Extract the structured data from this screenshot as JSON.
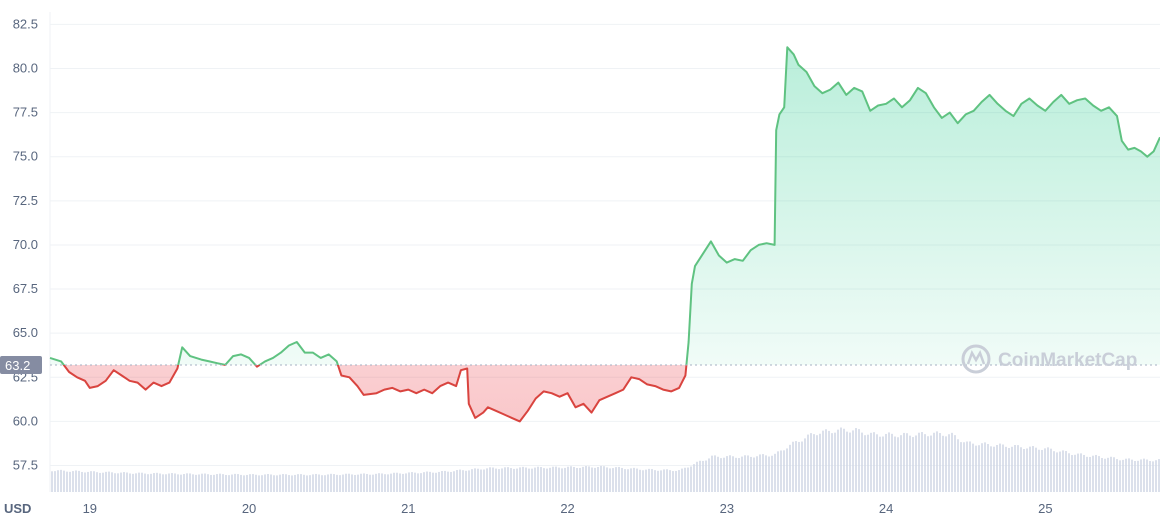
{
  "watermark": {
    "text": "CoinMarketCap",
    "icon": "coinmarketcap-logo-icon"
  },
  "colors": {
    "up": "#16c784",
    "up_line": "#5fc281",
    "down": "#ea3943",
    "down_line": "#d9443f",
    "volume": "#cfd6e4",
    "ref_badge": "#858ca2"
  },
  "chart_data": {
    "type": "area",
    "currency_label": "USD",
    "reference_value": 63.2,
    "reference_label": "63.2",
    "ylim": [
      56.0,
      83.2
    ],
    "xlim": [
      18.75,
      25.72
    ],
    "y_ticks": [
      {
        "value": 57.5,
        "label": "57.5"
      },
      {
        "value": 60.0,
        "label": "60.0"
      },
      {
        "value": 62.5,
        "label": "62.5"
      },
      {
        "value": 65.0,
        "label": "65.0"
      },
      {
        "value": 67.5,
        "label": "67.5"
      },
      {
        "value": 70.0,
        "label": "70.0"
      },
      {
        "value": 72.5,
        "label": "72.5"
      },
      {
        "value": 75.0,
        "label": "75.0"
      },
      {
        "value": 77.5,
        "label": "77.5"
      },
      {
        "value": 80.0,
        "label": "80.0"
      },
      {
        "value": 82.5,
        "label": "82.5"
      }
    ],
    "x_ticks": [
      {
        "value": 19,
        "label": "19"
      },
      {
        "value": 20,
        "label": "20"
      },
      {
        "value": 21,
        "label": "21"
      },
      {
        "value": 22,
        "label": "22"
      },
      {
        "value": 23,
        "label": "23"
      },
      {
        "value": 24,
        "label": "24"
      },
      {
        "value": 25,
        "label": "25"
      }
    ],
    "price": [
      [
        18.75,
        63.6
      ],
      [
        18.82,
        63.4
      ],
      [
        18.87,
        62.8
      ],
      [
        18.92,
        62.5
      ],
      [
        18.97,
        62.3
      ],
      [
        19.0,
        61.9
      ],
      [
        19.05,
        62.0
      ],
      [
        19.1,
        62.3
      ],
      [
        19.15,
        62.9
      ],
      [
        19.2,
        62.6
      ],
      [
        19.25,
        62.3
      ],
      [
        19.3,
        62.2
      ],
      [
        19.35,
        61.8
      ],
      [
        19.4,
        62.2
      ],
      [
        19.45,
        62.0
      ],
      [
        19.5,
        62.2
      ],
      [
        19.55,
        63.0
      ],
      [
        19.58,
        64.2
      ],
      [
        19.63,
        63.7
      ],
      [
        19.7,
        63.5
      ],
      [
        19.75,
        63.4
      ],
      [
        19.8,
        63.3
      ],
      [
        19.85,
        63.2
      ],
      [
        19.9,
        63.7
      ],
      [
        19.95,
        63.8
      ],
      [
        20.0,
        63.6
      ],
      [
        20.05,
        63.1
      ],
      [
        20.1,
        63.4
      ],
      [
        20.15,
        63.6
      ],
      [
        20.2,
        63.9
      ],
      [
        20.25,
        64.3
      ],
      [
        20.3,
        64.5
      ],
      [
        20.35,
        63.9
      ],
      [
        20.4,
        63.9
      ],
      [
        20.45,
        63.6
      ],
      [
        20.5,
        63.8
      ],
      [
        20.55,
        63.4
      ],
      [
        20.58,
        62.6
      ],
      [
        20.63,
        62.5
      ],
      [
        20.68,
        62.0
      ],
      [
        20.72,
        61.5
      ],
      [
        20.8,
        61.6
      ],
      [
        20.85,
        61.8
      ],
      [
        20.9,
        61.9
      ],
      [
        20.95,
        61.7
      ],
      [
        21.0,
        61.8
      ],
      [
        21.05,
        61.6
      ],
      [
        21.1,
        61.8
      ],
      [
        21.15,
        61.6
      ],
      [
        21.2,
        62.0
      ],
      [
        21.25,
        62.2
      ],
      [
        21.3,
        62.0
      ],
      [
        21.33,
        62.9
      ],
      [
        21.37,
        63.0
      ],
      [
        21.38,
        61.0
      ],
      [
        21.42,
        60.2
      ],
      [
        21.47,
        60.5
      ],
      [
        21.5,
        60.8
      ],
      [
        21.55,
        60.6
      ],
      [
        21.6,
        60.4
      ],
      [
        21.65,
        60.2
      ],
      [
        21.7,
        60.0
      ],
      [
        21.75,
        60.6
      ],
      [
        21.8,
        61.3
      ],
      [
        21.85,
        61.7
      ],
      [
        21.9,
        61.6
      ],
      [
        21.95,
        61.4
      ],
      [
        22.0,
        61.6
      ],
      [
        22.05,
        60.8
      ],
      [
        22.1,
        61.0
      ],
      [
        22.15,
        60.5
      ],
      [
        22.2,
        61.2
      ],
      [
        22.25,
        61.4
      ],
      [
        22.3,
        61.6
      ],
      [
        22.35,
        61.8
      ],
      [
        22.4,
        62.5
      ],
      [
        22.45,
        62.4
      ],
      [
        22.5,
        62.1
      ],
      [
        22.55,
        62.0
      ],
      [
        22.6,
        61.8
      ],
      [
        22.65,
        61.7
      ],
      [
        22.7,
        61.9
      ],
      [
        22.74,
        62.6
      ],
      [
        22.76,
        64.5
      ],
      [
        22.78,
        67.8
      ],
      [
        22.8,
        68.8
      ],
      [
        22.85,
        69.5
      ],
      [
        22.9,
        70.2
      ],
      [
        22.95,
        69.4
      ],
      [
        23.0,
        69.0
      ],
      [
        23.05,
        69.2
      ],
      [
        23.1,
        69.1
      ],
      [
        23.15,
        69.7
      ],
      [
        23.2,
        70.0
      ],
      [
        23.25,
        70.1
      ],
      [
        23.3,
        70.0
      ],
      [
        23.31,
        76.5
      ],
      [
        23.33,
        77.4
      ],
      [
        23.36,
        77.8
      ],
      [
        23.38,
        81.2
      ],
      [
        23.42,
        80.8
      ],
      [
        23.45,
        80.2
      ],
      [
        23.5,
        79.8
      ],
      [
        23.55,
        79.0
      ],
      [
        23.6,
        78.6
      ],
      [
        23.65,
        78.8
      ],
      [
        23.7,
        79.2
      ],
      [
        23.75,
        78.5
      ],
      [
        23.8,
        78.9
      ],
      [
        23.85,
        78.7
      ],
      [
        23.9,
        77.6
      ],
      [
        23.95,
        77.9
      ],
      [
        24.0,
        78.0
      ],
      [
        24.05,
        78.3
      ],
      [
        24.1,
        77.8
      ],
      [
        24.15,
        78.2
      ],
      [
        24.2,
        78.9
      ],
      [
        24.25,
        78.6
      ],
      [
        24.3,
        77.8
      ],
      [
        24.35,
        77.2
      ],
      [
        24.4,
        77.5
      ],
      [
        24.45,
        76.9
      ],
      [
        24.5,
        77.4
      ],
      [
        24.55,
        77.6
      ],
      [
        24.6,
        78.1
      ],
      [
        24.65,
        78.5
      ],
      [
        24.7,
        78.0
      ],
      [
        24.75,
        77.6
      ],
      [
        24.8,
        77.3
      ],
      [
        24.85,
        78.0
      ],
      [
        24.9,
        78.3
      ],
      [
        24.95,
        77.9
      ],
      [
        25.0,
        77.6
      ],
      [
        25.05,
        78.1
      ],
      [
        25.1,
        78.5
      ],
      [
        25.15,
        78.0
      ],
      [
        25.2,
        78.2
      ],
      [
        25.25,
        78.3
      ],
      [
        25.3,
        77.9
      ],
      [
        25.35,
        77.6
      ],
      [
        25.4,
        77.8
      ],
      [
        25.45,
        77.3
      ],
      [
        25.48,
        75.9
      ],
      [
        25.52,
        75.4
      ],
      [
        25.56,
        75.5
      ],
      [
        25.6,
        75.3
      ],
      [
        25.64,
        75.0
      ],
      [
        25.68,
        75.3
      ],
      [
        25.72,
        76.1
      ]
    ],
    "volume_relative": [
      [
        18.75,
        0.3
      ],
      [
        19.0,
        0.28
      ],
      [
        19.3,
        0.26
      ],
      [
        19.6,
        0.25
      ],
      [
        20.0,
        0.24
      ],
      [
        20.4,
        0.24
      ],
      [
        20.8,
        0.25
      ],
      [
        21.2,
        0.28
      ],
      [
        21.5,
        0.33
      ],
      [
        21.9,
        0.34
      ],
      [
        22.2,
        0.35
      ],
      [
        22.5,
        0.31
      ],
      [
        22.7,
        0.3
      ],
      [
        22.78,
        0.38
      ],
      [
        22.9,
        0.49
      ],
      [
        23.1,
        0.49
      ],
      [
        23.3,
        0.52
      ],
      [
        23.38,
        0.64
      ],
      [
        23.55,
        0.82
      ],
      [
        23.7,
        0.86
      ],
      [
        23.8,
        0.86
      ],
      [
        23.9,
        0.8
      ],
      [
        24.1,
        0.79
      ],
      [
        24.3,
        0.81
      ],
      [
        24.4,
        0.8
      ],
      [
        24.5,
        0.68
      ],
      [
        24.75,
        0.64
      ],
      [
        25.0,
        0.6
      ],
      [
        25.2,
        0.52
      ],
      [
        25.5,
        0.45
      ],
      [
        25.72,
        0.44
      ]
    ]
  }
}
